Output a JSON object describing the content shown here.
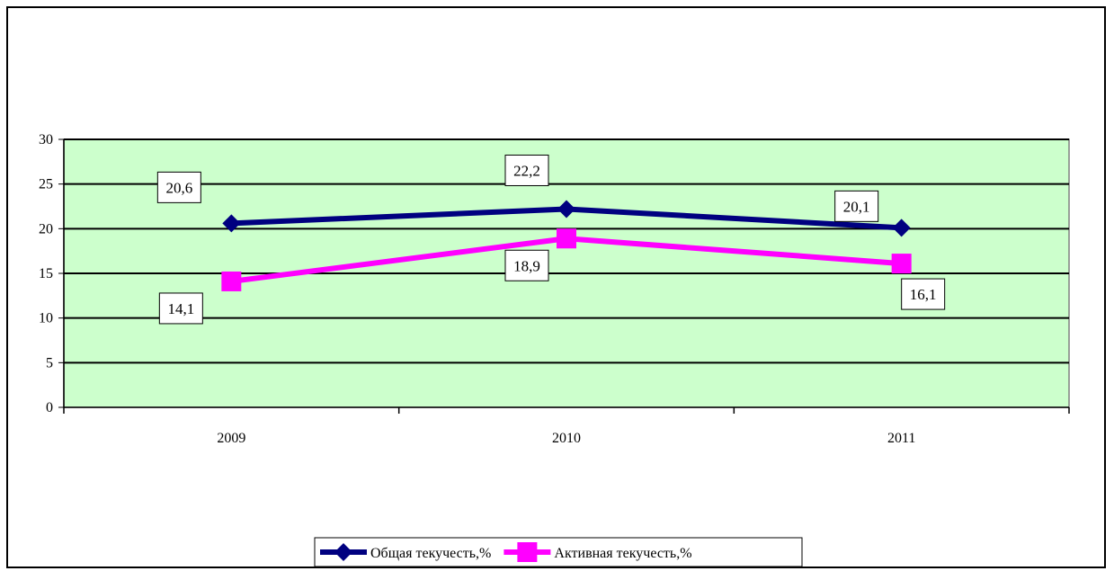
{
  "chart_data": {
    "type": "line",
    "categories": [
      "2009",
      "2010",
      "2011"
    ],
    "ylim": [
      0,
      30
    ],
    "yticks": [
      0,
      5,
      10,
      15,
      20,
      25,
      30
    ],
    "grid": true,
    "plot_background": "#ccffcc",
    "legend_position": "bottom",
    "series": [
      {
        "name": "Общая текучесть,%",
        "values": [
          20.6,
          22.2,
          20.1
        ],
        "labels": [
          "20,6",
          "22,2",
          "20,1"
        ],
        "color": "#000080",
        "marker": "diamond"
      },
      {
        "name": "Активная текучесть,%",
        "values": [
          14.1,
          18.9,
          16.1
        ],
        "labels": [
          "14,1",
          "18,9",
          "16,1"
        ],
        "color": "#ff00ff",
        "marker": "square"
      }
    ]
  }
}
